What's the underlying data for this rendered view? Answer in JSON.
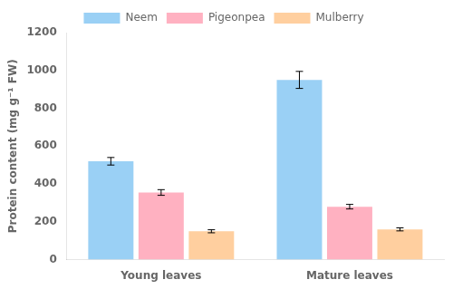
{
  "chart_data": {
    "type": "bar",
    "categories": [
      "Young leaves",
      "Mature leaves"
    ],
    "series": [
      {
        "name": "Neem",
        "values": [
          520,
          950
        ],
        "errors": [
          20,
          45
        ]
      },
      {
        "name": "Pigeonpea",
        "values": [
          355,
          280
        ],
        "errors": [
          15,
          12
        ]
      },
      {
        "name": "Mulberry",
        "values": [
          150,
          160
        ],
        "errors": [
          8,
          8
        ]
      }
    ],
    "ylabel": "Protein content (mg g⁻¹ FW)",
    "ylim": [
      0,
      1200
    ],
    "yticks": [
      0,
      200,
      400,
      600,
      800,
      1000,
      1200
    ],
    "grid": false,
    "legend": "top"
  }
}
